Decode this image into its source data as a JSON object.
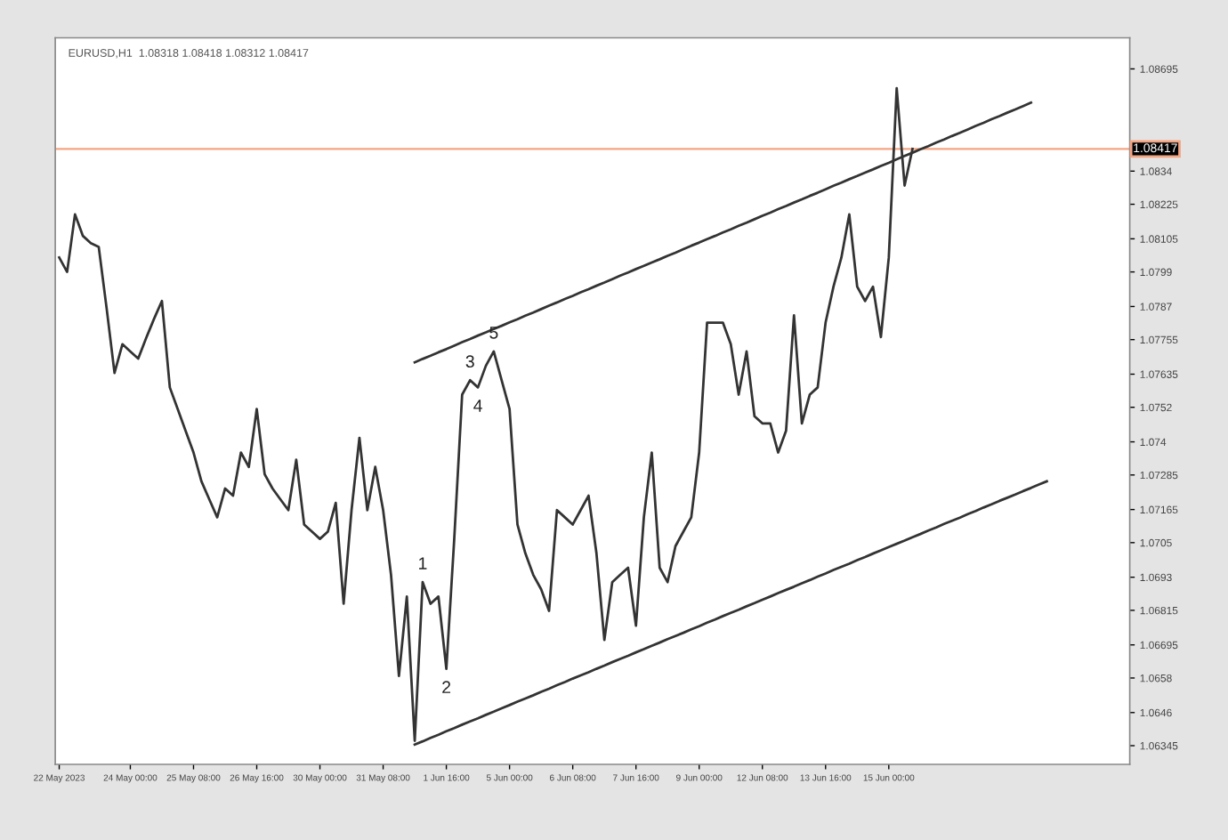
{
  "chart_data": {
    "type": "line",
    "title": "EURUSD,H1  1.08318 1.08418 1.08312 1.08417",
    "categories": [
      "22 May 2023",
      null,
      null,
      null,
      null,
      null,
      null,
      null,
      null,
      "24 May 00:00",
      null,
      null,
      null,
      null,
      null,
      null,
      null,
      "25 May 08:00",
      null,
      null,
      null,
      null,
      null,
      null,
      null,
      "26 May 16:00",
      null,
      null,
      null,
      null,
      null,
      null,
      null,
      "30 May 00:00",
      null,
      null,
      null,
      null,
      null,
      null,
      null,
      "31 May 08:00",
      null,
      null,
      null,
      null,
      null,
      null,
      null,
      "1 Jun 16:00",
      null,
      null,
      null,
      null,
      null,
      null,
      null,
      "5 Jun 00:00",
      null,
      null,
      null,
      null,
      null,
      null,
      null,
      "6 Jun 08:00",
      null,
      null,
      null,
      null,
      null,
      null,
      null,
      "7 Jun 16:00",
      null,
      null,
      null,
      null,
      null,
      null,
      null,
      "9 Jun 00:00",
      null,
      null,
      null,
      null,
      null,
      null,
      null,
      "12 Jun 08:00",
      null,
      null,
      null,
      null,
      null,
      null,
      null,
      "13 Jun 16:00",
      null,
      null,
      null,
      null,
      null,
      null,
      null,
      "15 Jun 00:00",
      null,
      null,
      null,
      null,
      null,
      null,
      null,
      null,
      null,
      null,
      null,
      null,
      null,
      null,
      null,
      null,
      null,
      null,
      null,
      null,
      null,
      null,
      null,
      null,
      null,
      null,
      null,
      null,
      null,
      null
    ],
    "series": [
      {
        "color": "#333333",
        "values": [
          1.0804,
          1.0799,
          1.0819,
          1.08115,
          1.0809,
          1.08077,
          1.07864,
          1.07639,
          1.07739,
          1.07714,
          1.07689,
          1.0776,
          1.07827,
          1.07889,
          1.07589,
          1.07514,
          1.07438,
          1.07363,
          1.07263,
          1.072,
          1.07138,
          1.07238,
          1.07213,
          1.07363,
          1.07313,
          1.07514,
          1.07288,
          1.07238,
          1.072,
          1.07163,
          1.07338,
          1.07113,
          1.07088,
          1.07063,
          1.07088,
          1.07188,
          1.06838,
          1.07163,
          1.07414,
          1.07163,
          1.07313,
          1.07163,
          1.06938,
          1.06587,
          1.06863,
          1.06362,
          1.06913,
          1.06838,
          1.06863,
          1.06612,
          1.07063,
          1.07564,
          1.07614,
          1.07589,
          1.07664,
          1.07714,
          1.07614,
          1.07514,
          1.07113,
          1.07013,
          1.06938,
          1.06888,
          1.06813,
          1.07163,
          1.07138,
          1.07113,
          1.07163,
          1.07213,
          1.07013,
          1.06712,
          1.06913,
          1.06938,
          1.06963,
          1.06762,
          1.07138,
          1.07363,
          1.06963,
          1.06913,
          1.07038,
          1.07088,
          1.07138,
          1.07363,
          1.07814,
          1.07814,
          1.07814,
          1.07739,
          1.07564,
          1.07714,
          1.07489,
          1.07464,
          1.07464,
          1.07363,
          1.07439,
          1.07839,
          1.07464,
          1.07564,
          1.07589,
          1.07814,
          1.07939,
          1.0804,
          1.0819,
          1.07939,
          1.07889,
          1.07939,
          1.07764,
          1.0804,
          1.08628,
          1.0829,
          1.08417,
          null,
          null,
          null,
          null,
          null,
          null,
          null,
          null,
          null,
          null,
          null,
          null,
          null,
          null,
          null,
          null,
          null,
          null,
          null,
          null,
          null,
          null,
          null,
          null,
          null,
          null,
          null
        ]
      },
      {
        "type": "line",
        "color": "#333333",
        "values": [
          null,
          null,
          null,
          null,
          null,
          null,
          null,
          null,
          null,
          null,
          null,
          null,
          null,
          null,
          null,
          null,
          null,
          null,
          null,
          null,
          null,
          null,
          null,
          null,
          null,
          null,
          null,
          null,
          null,
          null,
          null,
          null,
          null,
          null,
          null,
          null,
          null,
          null,
          null,
          null,
          null,
          null,
          null,
          null,
          null,
          1.07676,
          1.07688,
          1.07699,
          1.07711,
          1.07722,
          1.07734,
          1.07746,
          1.07757,
          1.07769,
          1.0778,
          1.07792,
          1.07803,
          1.07815,
          1.07826,
          1.07838,
          1.07849,
          1.07861,
          1.07873,
          1.07884,
          1.07896,
          1.07907,
          1.07919,
          1.0793,
          1.07942,
          1.07953,
          1.07965,
          1.07977,
          1.07988,
          1.08,
          1.08011,
          1.08023,
          1.08034,
          1.08046,
          1.08057,
          1.08069,
          1.08081,
          1.08092,
          1.08104,
          1.08115,
          1.08127,
          1.08138,
          1.0815,
          1.08161,
          1.08173,
          1.08185,
          1.08196,
          1.08208,
          1.08219,
          1.08231,
          1.08242,
          1.08254,
          1.08265,
          1.08277,
          1.08289,
          1.083,
          1.08312,
          1.08323,
          1.08335,
          1.08346,
          1.08358,
          1.08369,
          1.08381,
          1.08393,
          1.08404,
          1.08416,
          1.08427,
          1.08439,
          1.0845,
          1.08462,
          1.08473,
          1.08485,
          1.08497,
          1.08508,
          1.0852,
          1.08531,
          1.08543,
          1.08554,
          1.08566,
          1.08578,
          null,
          null,
          null,
          null,
          null,
          null,
          null,
          null,
          null,
          null,
          null,
          null
        ]
      },
      {
        "type": "line",
        "color": "#333333",
        "values": [
          null,
          null,
          null,
          null,
          null,
          null,
          null,
          null,
          null,
          null,
          null,
          null,
          null,
          null,
          null,
          null,
          null,
          null,
          null,
          null,
          null,
          null,
          null,
          null,
          null,
          null,
          null,
          null,
          null,
          null,
          null,
          null,
          null,
          null,
          null,
          null,
          null,
          null,
          null,
          null,
          null,
          null,
          null,
          null,
          null,
          1.06349,
          1.0636,
          1.06372,
          1.06383,
          1.06395,
          1.06406,
          1.06418,
          1.06429,
          1.0644,
          1.06452,
          1.06463,
          1.06475,
          1.06486,
          1.06498,
          1.06509,
          1.0652,
          1.06532,
          1.06543,
          1.06555,
          1.06566,
          1.06578,
          1.06589,
          1.066,
          1.06612,
          1.06623,
          1.06635,
          1.06646,
          1.06657,
          1.06669,
          1.0668,
          1.06692,
          1.06703,
          1.06715,
          1.06726,
          1.06737,
          1.06749,
          1.0676,
          1.06772,
          1.06783,
          1.06795,
          1.06806,
          1.06817,
          1.06829,
          1.0684,
          1.06852,
          1.06863,
          1.06875,
          1.06886,
          1.06897,
          1.06909,
          1.0692,
          1.06932,
          1.06943,
          1.06955,
          1.06966,
          1.06977,
          1.06989,
          1.07,
          1.07012,
          1.07023,
          1.07035,
          1.07046,
          1.07057,
          1.07069,
          1.0708,
          1.07092,
          1.07103,
          1.07115,
          1.07126,
          1.07137,
          1.07149,
          1.0716,
          1.07172,
          1.07183,
          1.07195,
          1.07206,
          1.07217,
          1.07229,
          1.0724,
          1.07252,
          1.07263,
          null,
          null,
          null,
          null,
          null,
          null,
          null,
          null,
          null,
          null
        ]
      }
    ],
    "annotations": [
      {
        "text": "1",
        "y": 1.06913
      },
      {
        "text": "2",
        "y": 1.06612
      },
      {
        "text": "3",
        "y": 1.07614
      },
      {
        "text": "4",
        "y": 1.07589
      },
      {
        "text": "5",
        "y": 1.07714
      }
    ],
    "ref_lines": [
      {
        "axis": "y",
        "value": 1.08417,
        "label": "1.08417",
        "color": "#f4a582"
      }
    ],
    "ylim": [
      1.0628,
      1.08803
    ],
    "yticks": [
      1.08695,
      1.0834,
      1.08225,
      1.08105,
      1.0799,
      1.0787,
      1.07755,
      1.07635,
      1.0752,
      1.074,
      1.07285,
      1.07165,
      1.0705,
      1.0693,
      1.06815,
      1.06695,
      1.0658,
      1.0646,
      1.06345
    ],
    "grid": false,
    "marker": "none",
    "line_style": "solid"
  }
}
